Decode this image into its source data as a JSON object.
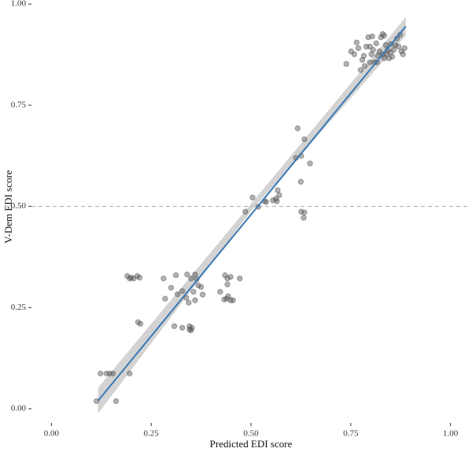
{
  "chart_data": {
    "type": "scatter",
    "x_label": "Predicted EDI score",
    "y_label": "V-Dem EDI score",
    "xlim": [
      -0.05,
      1.05
    ],
    "ylim": [
      -0.035,
      1.01
    ],
    "xticks": [
      {
        "value": 0,
        "label": "0.00"
      },
      {
        "value": 0.25,
        "label": "0.25"
      },
      {
        "value": 0.5,
        "label": "0.50"
      },
      {
        "value": 0.75,
        "label": "0.75"
      },
      {
        "value": 1,
        "label": "1.00"
      }
    ],
    "yticks": [
      {
        "value": 0,
        "label": "0.00"
      },
      {
        "value": 0.25,
        "label": "0.25"
      },
      {
        "value": 0.5,
        "label": "0.50"
      },
      {
        "value": 0.75,
        "label": "0.75"
      },
      {
        "value": 1,
        "label": "1.00"
      }
    ],
    "hline": 0.5,
    "point_color": "#555555",
    "fit": {
      "color": "#3a78b5",
      "x": [
        0.117,
        0.888
      ],
      "y": [
        0.02,
        0.945
      ]
    },
    "band": {
      "color": "#c8c8c8",
      "x": [
        0.117,
        0.5,
        0.888
      ],
      "lower": [
        -0.012,
        0.488,
        0.922
      ],
      "upper": [
        0.052,
        0.506,
        0.968
      ]
    },
    "x": [
      0.113,
      0.123,
      0.138,
      0.146,
      0.154,
      0.162,
      0.196,
      0.19,
      0.2,
      0.206,
      0.215,
      0.221,
      0.196,
      0.217,
      0.223,
      0.281,
      0.312,
      0.34,
      0.35,
      0.36,
      0.364,
      0.285,
      0.3,
      0.316,
      0.328,
      0.338,
      0.344,
      0.356,
      0.368,
      0.375,
      0.379,
      0.36,
      0.308,
      0.328,
      0.346,
      0.35,
      0.346,
      0.352,
      0.435,
      0.441,
      0.449,
      0.472,
      0.441,
      0.439,
      0.449,
      0.433,
      0.455,
      0.443,
      0.423,
      0.486,
      0.504,
      0.518,
      0.534,
      0.538,
      0.555,
      0.563,
      0.567,
      0.571,
      0.565,
      0.626,
      0.634,
      0.632,
      0.625,
      0.613,
      0.626,
      0.634,
      0.617,
      0.648,
      0.739,
      0.751,
      0.759,
      0.769,
      0.775,
      0.779,
      0.783,
      0.789,
      0.794,
      0.798,
      0.802,
      0.806,
      0.81,
      0.814,
      0.818,
      0.822,
      0.826,
      0.83,
      0.834,
      0.838,
      0.842,
      0.846,
      0.85,
      0.854,
      0.858,
      0.862,
      0.866,
      0.87,
      0.874,
      0.877,
      0.881,
      0.885,
      0.834,
      0.85,
      0.804,
      0.765,
      0.785,
      0.798,
      0.816,
      0.83,
      0.84
    ],
    "y": [
      0.019,
      0.087,
      0.087,
      0.087,
      0.087,
      0.019,
      0.087,
      0.328,
      0.324,
      0.322,
      0.328,
      0.324,
      0.322,
      0.214,
      0.21,
      0.322,
      0.33,
      0.332,
      0.322,
      0.332,
      0.32,
      0.272,
      0.299,
      0.283,
      0.291,
      0.274,
      0.262,
      0.289,
      0.305,
      0.301,
      0.282,
      0.268,
      0.204,
      0.2,
      0.196,
      0.194,
      0.204,
      0.2,
      0.33,
      0.322,
      0.326,
      0.322,
      0.307,
      0.272,
      0.268,
      0.27,
      0.268,
      0.278,
      0.289,
      0.487,
      0.522,
      0.499,
      0.513,
      0.511,
      0.515,
      0.519,
      0.54,
      0.528,
      0.513,
      0.487,
      0.485,
      0.472,
      0.561,
      0.62,
      0.625,
      0.666,
      0.693,
      0.606,
      0.852,
      0.883,
      0.876,
      0.891,
      0.837,
      0.862,
      0.872,
      0.895,
      0.918,
      0.895,
      0.876,
      0.887,
      0.856,
      0.903,
      0.872,
      0.883,
      0.918,
      0.926,
      0.922,
      0.899,
      0.887,
      0.866,
      0.88,
      0.87,
      0.887,
      0.899,
      0.915,
      0.895,
      0.924,
      0.883,
      0.876,
      0.891,
      0.866,
      0.901,
      0.92,
      0.905,
      0.847,
      0.856,
      0.856,
      0.876,
      0.876
    ]
  }
}
